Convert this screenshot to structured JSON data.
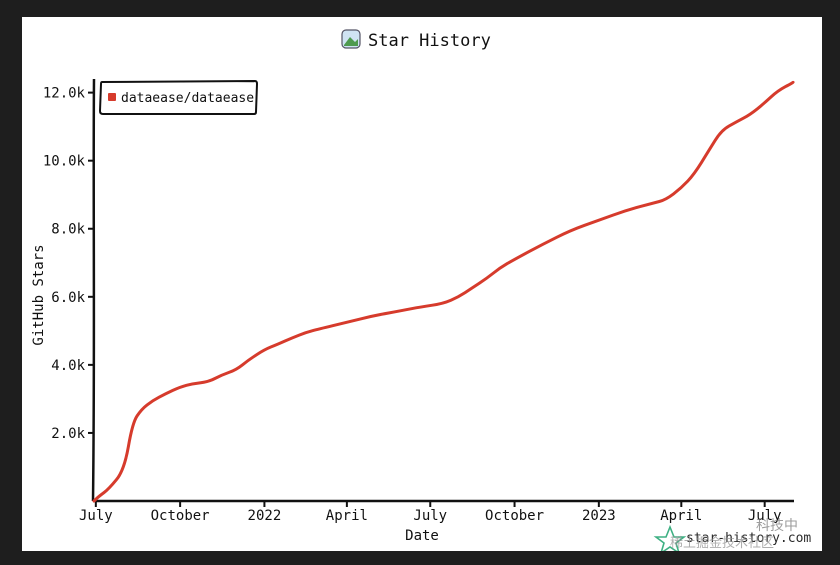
{
  "chart_data": {
    "type": "line",
    "title": "Star History",
    "xlabel": "Date",
    "ylabel": "GitHub Stars",
    "x_ticks": [
      "July",
      "October",
      "2022",
      "April",
      "July",
      "October",
      "2023",
      "April",
      "July"
    ],
    "y_ticks": [
      "2.0k",
      "4.0k",
      "6.0k",
      "8.0k",
      "10.0k",
      "12.0k"
    ],
    "y_tick_values": [
      2000,
      4000,
      6000,
      8000,
      10000,
      12000
    ],
    "ylim": [
      0,
      12400
    ],
    "xlim": [
      "2021-06-29",
      "2023-08-02"
    ],
    "grid": false,
    "legend_position": "top-left",
    "series": [
      {
        "name": "dataease/dataease",
        "color": "#d63b2c",
        "x": [
          "2021-06-29",
          "2021-07-05",
          "2021-07-15",
          "2021-08-01",
          "2021-08-10",
          "2021-08-20",
          "2021-09-01",
          "2021-09-15",
          "2021-10-01",
          "2021-10-15",
          "2021-11-01",
          "2021-11-15",
          "2021-12-01",
          "2021-12-15",
          "2022-01-01",
          "2022-01-15",
          "2022-02-01",
          "2022-02-15",
          "2022-03-01",
          "2022-04-01",
          "2022-05-01",
          "2022-06-01",
          "2022-06-20",
          "2022-07-15",
          "2022-08-01",
          "2022-08-15",
          "2022-09-01",
          "2022-09-15",
          "2022-10-01",
          "2022-11-01",
          "2022-12-01",
          "2023-01-01",
          "2023-02-01",
          "2023-03-01",
          "2023-03-15",
          "2023-04-01",
          "2023-04-15",
          "2023-05-01",
          "2023-05-15",
          "2023-06-01",
          "2023-06-15",
          "2023-07-01",
          "2023-07-15",
          "2023-08-01"
        ],
        "values": [
          0,
          150,
          350,
          900,
          2300,
          2700,
          2950,
          3150,
          3350,
          3450,
          3500,
          3700,
          3850,
          4150,
          4450,
          4600,
          4800,
          4950,
          5050,
          5250,
          5450,
          5600,
          5700,
          5800,
          6000,
          6250,
          6550,
          6850,
          7100,
          7550,
          7950,
          8250,
          8550,
          8750,
          8850,
          9200,
          9600,
          10300,
          10900,
          11150,
          11350,
          11700,
          12050,
          12300
        ]
      }
    ]
  },
  "watermark": {
    "site": "star-history.com",
    "overlay": "稀土掘金技术社区",
    "brand": "科技中"
  }
}
